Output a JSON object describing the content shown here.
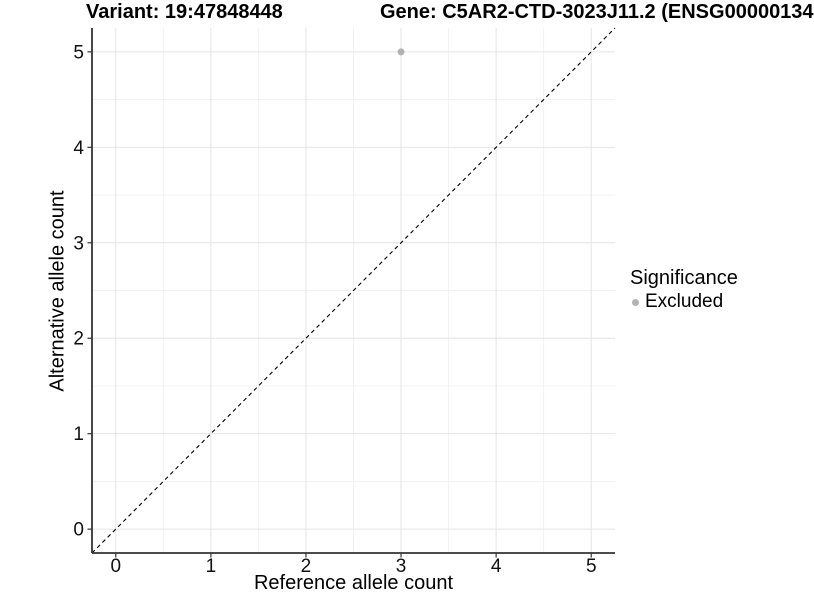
{
  "chart_data": {
    "type": "scatter",
    "title_left": "Variant: 19:47848448",
    "title_right": "Gene: C5AR2-CTD-3023J11.2 (ENSG00000134",
    "xlabel": "Reference allele count",
    "ylabel": "Alternative allele count",
    "xlim": [
      -0.25,
      5.25
    ],
    "ylim": [
      -0.25,
      5.25
    ],
    "x_ticks": [
      0,
      1,
      2,
      3,
      4,
      5
    ],
    "y_ticks": [
      0,
      1,
      2,
      3,
      4,
      5
    ],
    "x_minor_ticks": [
      0.5,
      1.5,
      2.5,
      3.5,
      4.5
    ],
    "y_minor_ticks": [
      0.5,
      1.5,
      2.5,
      3.5,
      4.5
    ],
    "grid": true,
    "reference_line": {
      "kind": "identity",
      "from": [
        -0.25,
        -0.25
      ],
      "to": [
        5.25,
        5.25
      ],
      "style": "dashed",
      "color": "#000000"
    },
    "series": [
      {
        "name": "Excluded",
        "color": "#b2b2b2",
        "points": [
          {
            "x": 3,
            "y": 5
          }
        ]
      }
    ],
    "legend": {
      "title": "Significance",
      "position": "right",
      "items": [
        {
          "label": "Excluded",
          "color": "#b2b2b2"
        }
      ]
    },
    "colors": {
      "axis_line": "#333333",
      "tick_mark": "#333333",
      "grid_major": "#e4e4e4",
      "grid_minor": "#f1f1f1",
      "background": "#ffffff"
    }
  }
}
